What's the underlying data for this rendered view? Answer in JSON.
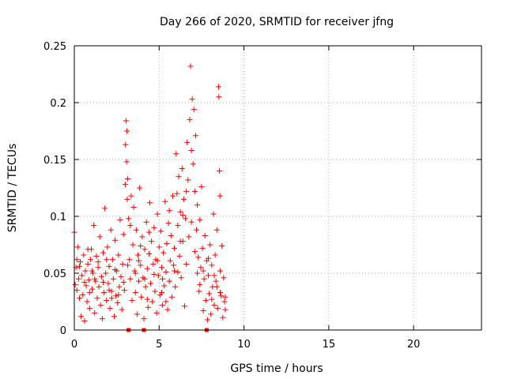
{
  "chart_data": {
    "type": "scatter",
    "title": "Day 266 of 2020, SRMTID for receiver jfng",
    "xlabel": "GPS time / hours",
    "ylabel": "SRMTID / TECUs",
    "xlim": [
      0,
      24
    ],
    "ylim": [
      0,
      0.25
    ],
    "xticks": [
      0,
      5,
      10,
      15,
      20
    ],
    "xtick_labels": [
      "0",
      "5",
      "10",
      "15",
      "20"
    ],
    "yticks": [
      0,
      0.05,
      0.1,
      0.15,
      0.2,
      0.25
    ],
    "ytick_labels": [
      "0",
      "0.05",
      "0.1",
      "0.15",
      "0.2",
      "0.25"
    ],
    "grid": true,
    "marker": "+",
    "color": "#ff0000",
    "series": [
      {
        "name": "SRMTID",
        "points": [
          [
            0.0,
            0.086
          ],
          [
            0.05,
            0.04
          ],
          [
            0.1,
            0.055
          ],
          [
            0.15,
            0.035
          ],
          [
            0.2,
            0.073
          ],
          [
            0.25,
            0.045
          ],
          [
            0.3,
            0.028
          ],
          [
            0.35,
            0.06
          ],
          [
            0.4,
            0.012
          ],
          [
            0.45,
            0.048
          ],
          [
            0.5,
            0.031
          ],
          [
            0.55,
            0.066
          ],
          [
            0.6,
            0.008
          ],
          [
            0.65,
            0.052
          ],
          [
            0.7,
            0.039
          ],
          [
            0.75,
            0.025
          ],
          [
            0.8,
            0.058
          ],
          [
            0.85,
            0.044
          ],
          [
            0.9,
            0.019
          ],
          [
            0.95,
            0.062
          ],
          [
            1.0,
            0.071
          ],
          [
            1.05,
            0.036
          ],
          [
            1.1,
            0.05
          ],
          [
            1.15,
            0.092
          ],
          [
            1.2,
            0.015
          ],
          [
            1.25,
            0.043
          ],
          [
            1.3,
            0.065
          ],
          [
            1.35,
            0.028
          ],
          [
            1.4,
            0.055
          ],
          [
            1.45,
            0.038
          ],
          [
            1.5,
            0.082
          ],
          [
            1.55,
            0.022
          ],
          [
            1.6,
            0.047
          ],
          [
            1.65,
            0.01
          ],
          [
            1.7,
            0.068
          ],
          [
            1.75,
            0.033
          ],
          [
            1.8,
            0.107
          ],
          [
            1.85,
            0.05
          ],
          [
            1.9,
            0.026
          ],
          [
            1.95,
            0.073
          ],
          [
            2.0,
            0.041
          ],
          [
            2.05,
            0.056
          ],
          [
            2.1,
            0.019
          ],
          [
            2.15,
            0.088
          ],
          [
            2.2,
            0.034
          ],
          [
            2.25,
            0.062
          ],
          [
            2.3,
            0.045
          ],
          [
            2.35,
            0.012
          ],
          [
            2.4,
            0.079
          ],
          [
            2.45,
            0.03
          ],
          [
            2.5,
            0.052
          ],
          [
            2.55,
            0.024
          ],
          [
            2.6,
            0.066
          ],
          [
            2.65,
            0.038
          ],
          [
            2.7,
            0.097
          ],
          [
            2.75,
            0.047
          ],
          [
            2.8,
            0.018
          ],
          [
            2.85,
            0.058
          ],
          [
            2.9,
            0.084
          ],
          [
            2.95,
            0.035
          ],
          [
            3.0,
            0.128
          ],
          [
            3.02,
            0.163
          ],
          [
            3.05,
            0.184
          ],
          [
            3.08,
            0.148
          ],
          [
            3.1,
            0.175
          ],
          [
            3.12,
            0.115
          ],
          [
            3.15,
            0.133
          ],
          [
            3.2,
            0.098
          ],
          [
            3.25,
            0.062
          ],
          [
            3.3,
            0.045
          ],
          [
            3.35,
            0.118
          ],
          [
            3.4,
            0.026
          ],
          [
            3.45,
            0.075
          ],
          [
            3.5,
            0.108
          ],
          [
            3.55,
            0.052
          ],
          [
            3.6,
            0.033
          ],
          [
            3.65,
            0.088
          ],
          [
            3.7,
            0.014
          ],
          [
            3.75,
            0.066
          ],
          [
            3.8,
            0.043
          ],
          [
            3.85,
            0.125
          ],
          [
            3.9,
            0.057
          ],
          [
            3.95,
            0.029
          ],
          [
            4.0,
            0.082
          ],
          [
            4.05,
            0.046
          ],
          [
            4.1,
            0.01
          ],
          [
            4.15,
            0.071
          ],
          [
            4.2,
            0.038
          ],
          [
            4.25,
            0.095
          ],
          [
            4.3,
            0.054
          ],
          [
            4.35,
            0.02
          ],
          [
            4.4,
            0.067
          ],
          [
            4.45,
            0.112
          ],
          [
            4.5,
            0.041
          ],
          [
            4.55,
            0.078
          ],
          [
            4.6,
            0.025
          ],
          [
            4.65,
            0.058
          ],
          [
            4.7,
            0.09
          ],
          [
            4.75,
            0.034
          ],
          [
            4.8,
            0.062
          ],
          [
            4.85,
            0.015
          ],
          [
            4.9,
            0.102
          ],
          [
            4.95,
            0.048
          ],
          [
            5.0,
            0.073
          ],
          [
            5.05,
            0.031
          ],
          [
            5.1,
            0.087
          ],
          [
            5.15,
            0.055
          ],
          [
            5.2,
            0.022
          ],
          [
            5.25,
            0.068
          ],
          [
            5.3,
            0.039
          ],
          [
            5.35,
            0.113
          ],
          [
            5.4,
            0.051
          ],
          [
            5.45,
            0.076
          ],
          [
            5.5,
            0.018
          ],
          [
            5.55,
            0.094
          ],
          [
            5.6,
            0.043
          ],
          [
            5.65,
            0.061
          ],
          [
            5.7,
            0.083
          ],
          [
            5.75,
            0.029
          ],
          [
            5.8,
            0.118
          ],
          [
            5.85,
            0.057
          ],
          [
            5.9,
            0.072
          ],
          [
            5.95,
            0.038
          ],
          [
            6.0,
            0.155
          ],
          [
            6.05,
            0.12
          ],
          [
            6.1,
            0.092
          ],
          [
            6.15,
            0.135
          ],
          [
            6.2,
            0.065
          ],
          [
            6.25,
            0.104
          ],
          [
            6.3,
            0.046
          ],
          [
            6.35,
            0.142
          ],
          [
            6.4,
            0.078
          ],
          [
            6.45,
            0.115
          ],
          [
            6.5,
            0.021
          ],
          [
            6.55,
            0.098
          ],
          [
            6.6,
            0.058
          ],
          [
            6.65,
            0.165
          ],
          [
            6.7,
            0.132
          ],
          [
            6.75,
            0.082
          ],
          [
            6.8,
            0.185
          ],
          [
            6.85,
            0.232
          ],
          [
            6.9,
            0.158
          ],
          [
            6.95,
            0.203
          ],
          [
            7.0,
            0.146
          ],
          [
            7.05,
            0.194
          ],
          [
            7.1,
            0.122
          ],
          [
            7.15,
            0.171
          ],
          [
            7.2,
            0.088
          ],
          [
            7.25,
            0.11
          ],
          [
            7.3,
            0.064
          ],
          [
            7.35,
            0.034
          ],
          [
            7.4,
            0.097
          ],
          [
            7.45,
            0.055
          ],
          [
            7.5,
            0.126
          ],
          [
            7.55,
            0.072
          ],
          [
            7.6,
            0.017
          ],
          [
            7.65,
            0.045
          ],
          [
            7.7,
            0.083
          ],
          [
            7.75,
            0.026
          ],
          [
            7.8,
            0.061
          ],
          [
            7.85,
            0.009
          ],
          [
            7.9,
            0.048
          ],
          [
            7.95,
            0.032
          ],
          [
            8.0,
            0.075
          ],
          [
            8.05,
            0.014
          ],
          [
            8.1,
            0.057
          ],
          [
            8.15,
            0.038
          ],
          [
            8.2,
            0.102
          ],
          [
            8.25,
            0.022
          ],
          [
            8.3,
            0.066
          ],
          [
            8.35,
            0.043
          ],
          [
            8.4,
            0.088
          ],
          [
            8.45,
            0.019
          ],
          [
            8.5,
            0.214
          ],
          [
            8.52,
            0.205
          ],
          [
            8.55,
            0.14
          ],
          [
            8.58,
            0.118
          ],
          [
            8.6,
            0.052
          ],
          [
            8.65,
            0.03
          ],
          [
            8.7,
            0.074
          ],
          [
            8.75,
            0.011
          ],
          [
            8.8,
            0.046
          ],
          [
            8.85,
            0.025
          ],
          [
            8.9,
            0.018
          ],
          [
            0.3,
            0.056
          ],
          [
            0.8,
            0.071
          ],
          [
            1.2,
            0.045
          ],
          [
            1.7,
            0.042
          ],
          [
            2.2,
            0.028
          ],
          [
            2.6,
            0.031
          ],
          [
            3.3,
            0.092
          ],
          [
            3.8,
            0.061
          ],
          [
            4.3,
            0.027
          ],
          [
            4.7,
            0.049
          ],
          [
            5.2,
            0.045
          ],
          [
            5.6,
            0.105
          ],
          [
            6.1,
            0.051
          ],
          [
            6.6,
            0.122
          ],
          [
            7.1,
            0.069
          ],
          [
            7.6,
            0.052
          ],
          [
            8.1,
            0.027
          ],
          [
            8.6,
            0.033
          ],
          [
            0.6,
            0.042
          ],
          [
            1.4,
            0.06
          ],
          [
            2.4,
            0.053
          ],
          [
            3.6,
            0.05
          ],
          [
            4.4,
            0.086
          ],
          [
            5.4,
            0.025
          ],
          [
            6.4,
            0.101
          ],
          [
            7.4,
            0.04
          ],
          [
            8.4,
            0.038
          ],
          [
            0.9,
            0.033
          ],
          [
            1.9,
            0.062
          ],
          [
            2.9,
            0.042
          ],
          [
            3.9,
            0.074
          ],
          [
            4.9,
            0.061
          ],
          [
            5.9,
            0.052
          ],
          [
            6.9,
            0.095
          ],
          [
            7.9,
            0.063
          ],
          [
            8.9,
            0.029
          ],
          [
            0.15,
            0.062
          ],
          [
            1.05,
            0.052
          ],
          [
            2.05,
            0.035
          ],
          [
            3.15,
            0.057
          ],
          [
            4.15,
            0.045
          ],
          [
            5.15,
            0.033
          ],
          [
            6.25,
            0.078
          ],
          [
            7.25,
            0.05
          ],
          [
            8.25,
            0.048
          ]
        ]
      }
    ],
    "axis_markers": [
      3.2,
      4.1,
      7.8
    ]
  }
}
